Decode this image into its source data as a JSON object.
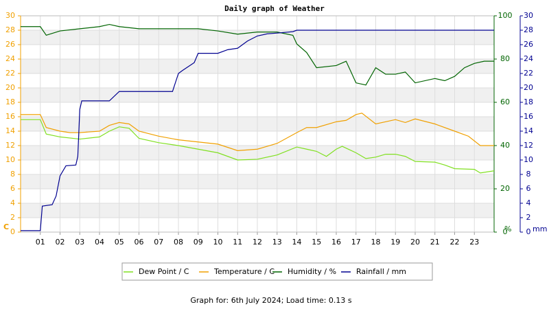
{
  "chart_data": {
    "type": "line",
    "title": "Daily graph of Weather",
    "footer": "Graph for: 6th July 2024; Load time: 0.13 s",
    "xlim": [
      0,
      24
    ],
    "xticks": [
      {
        "value": 1,
        "label": "01"
      },
      {
        "value": 2,
        "label": "02"
      },
      {
        "value": 3,
        "label": "03"
      },
      {
        "value": 4,
        "label": "04"
      },
      {
        "value": 5,
        "label": "05"
      },
      {
        "value": 6,
        "label": "06"
      },
      {
        "value": 7,
        "label": "07"
      },
      {
        "value": 8,
        "label": "08"
      },
      {
        "value": 9,
        "label": "09"
      },
      {
        "value": 10,
        "label": "10"
      },
      {
        "value": 11,
        "label": "11"
      },
      {
        "value": 12,
        "label": "12"
      },
      {
        "value": 13,
        "label": "13"
      },
      {
        "value": 14,
        "label": "14"
      },
      {
        "value": 15,
        "label": "15"
      },
      {
        "value": 16,
        "label": "16"
      },
      {
        "value": 17,
        "label": "17"
      },
      {
        "value": 18,
        "label": "18"
      },
      {
        "value": 19,
        "label": "19"
      },
      {
        "value": 20,
        "label": "20"
      },
      {
        "value": 21,
        "label": "21"
      },
      {
        "value": 22,
        "label": "22"
      },
      {
        "value": 23,
        "label": "23"
      }
    ],
    "ylim": [
      0,
      30
    ],
    "yticks": [
      0,
      2,
      4,
      6,
      8,
      10,
      12,
      14,
      16,
      18,
      20,
      22,
      24,
      26,
      28,
      30
    ],
    "ylabel": "C",
    "ycolor": "#f0a000",
    "y2lim": [
      0,
      100
    ],
    "y2ticks": [
      0,
      20,
      40,
      60,
      80,
      100
    ],
    "y2label": "%",
    "y2color": "#006400",
    "y3lim": [
      0,
      30
    ],
    "y3ticks": [
      0,
      2,
      4,
      6,
      8,
      10,
      12,
      14,
      16,
      18,
      20,
      22,
      24,
      26,
      28,
      30
    ],
    "y3label": "mm",
    "y3color": "#000090",
    "grid": true,
    "series": [
      {
        "name": "Dew Point / C",
        "color": "#80e020",
        "axis": "y",
        "x": [
          0,
          1,
          1.3,
          2,
          3,
          4,
          4.5,
          5,
          5.5,
          6,
          7,
          8,
          9,
          10,
          11,
          12,
          13,
          14,
          14.5,
          15,
          15.5,
          16,
          16.3,
          17,
          17.5,
          18,
          18.5,
          19,
          19.5,
          20,
          21,
          21.5,
          22,
          23,
          23.3,
          24
        ],
        "values": [
          15.6,
          15.6,
          13.6,
          13.2,
          12.9,
          13.2,
          14,
          14.6,
          14.4,
          13,
          12.4,
          12,
          11.5,
          11,
          10,
          10.1,
          10.7,
          11.8,
          11.5,
          11.2,
          10.5,
          11.5,
          11.9,
          11,
          10.2,
          10.4,
          10.8,
          10.8,
          10.5,
          9.8,
          9.7,
          9.3,
          8.8,
          8.7,
          8.2,
          8.5
        ]
      },
      {
        "name": "Temperature / C",
        "color": "#f0a000",
        "axis": "y",
        "x": [
          0,
          1,
          1.3,
          2,
          2.5,
          3,
          4,
          4.5,
          5,
          5.5,
          6,
          7,
          8,
          9,
          10,
          11,
          12,
          13,
          14,
          14.5,
          15,
          16,
          16.5,
          17,
          17.3,
          18,
          19,
          19.5,
          20,
          21,
          22,
          22.7,
          23.3,
          24
        ],
        "values": [
          16.3,
          16.3,
          14.5,
          14,
          13.8,
          13.8,
          14,
          14.8,
          15.2,
          15,
          14,
          13.3,
          12.8,
          12.5,
          12.2,
          11.3,
          11.5,
          12.3,
          13.8,
          14.5,
          14.5,
          15.3,
          15.5,
          16.3,
          16.5,
          15,
          15.6,
          15.2,
          15.7,
          15,
          14,
          13.3,
          12,
          12
        ]
      },
      {
        "name": "Humidity / %",
        "color": "#006400",
        "axis": "y2",
        "x": [
          0,
          1,
          1.3,
          2,
          3,
          4,
          4.5,
          5,
          6,
          8,
          9,
          10,
          11,
          12,
          13,
          13.8,
          14,
          14.5,
          15,
          16,
          16.5,
          17,
          17.5,
          18,
          18.5,
          19,
          19.5,
          20,
          21,
          21.5,
          22,
          22.5,
          23,
          23.5,
          24
        ],
        "values": [
          95,
          95,
          91,
          93,
          94,
          95,
          96,
          95,
          94,
          94,
          94,
          93,
          91.5,
          92.5,
          92.5,
          91,
          87,
          83,
          76,
          77,
          79,
          69,
          68,
          76,
          73,
          73,
          74,
          69,
          71,
          70,
          72,
          76,
          78,
          79,
          79
        ]
      },
      {
        "name": "Rainfall / mm",
        "color": "#000090",
        "axis": "y3",
        "x": [
          0,
          1,
          1.1,
          1.6,
          1.8,
          2,
          2.3,
          2.8,
          2.9,
          3,
          3.1,
          4.5,
          5,
          7.7,
          8,
          8.2,
          8.8,
          9,
          10,
          10.5,
          11,
          11.5,
          12,
          12.5,
          13,
          13.8,
          14,
          24
        ],
        "values": [
          0.2,
          0.2,
          3.6,
          3.8,
          5,
          7.8,
          9.2,
          9.3,
          10.5,
          17,
          18.2,
          18.2,
          19.5,
          19.5,
          22,
          22.4,
          23.5,
          24.8,
          24.8,
          25.3,
          25.5,
          26.5,
          27.2,
          27.5,
          27.6,
          27.8,
          28,
          28
        ]
      }
    ]
  }
}
